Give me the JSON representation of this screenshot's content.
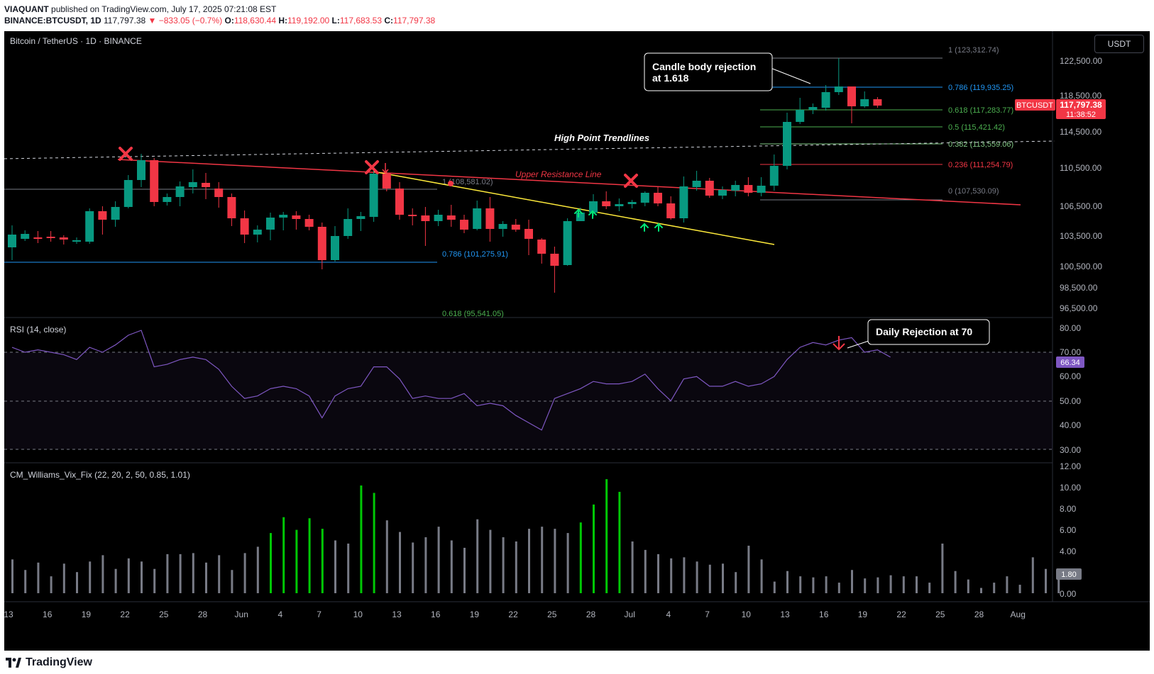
{
  "publish": {
    "author": "VIAQUANT",
    "published_text": "published on TradingView.com, July 17, 2025 07:21:08 EST",
    "symbol_line": "BINANCE:BTCUSDT, 1D",
    "last": "117,797.38",
    "change": "▼ −833.05 (−0.7%)",
    "o_label": "O:",
    "o": "118,630.44",
    "h_label": "H:",
    "h": "119,192.00",
    "l_label": "L:",
    "l": "117,683.53",
    "c_label": "C:",
    "c": "117,797.38"
  },
  "header": {
    "title": "Bitcoin / TetherUS · 1D · BINANCE",
    "currency_button": "USDT"
  },
  "price_scale": {
    "ticks": [
      "122,500.00",
      "118,500.00",
      "114,500.00",
      "110,500.00",
      "106,500.00",
      "103,500.00",
      "100,500.00",
      "98,500.00",
      "96,500.00"
    ],
    "ticker": "BTCUSDT",
    "last_price": "117,797.38",
    "countdown": "11:38:52"
  },
  "fib_upper": [
    {
      "label": "1 (123,312.74)",
      "color": "#787b86"
    },
    {
      "label": "0.786 (119,935.25)",
      "color": "#2196f3"
    },
    {
      "label": "0.618 (117,283.77)",
      "color": "#4caf50"
    },
    {
      "label": "0.5 (115,421.42)",
      "color": "#4caf50"
    },
    {
      "label": "0.382 (113,559.06)",
      "color": "#81c784"
    },
    {
      "label": "0.236 (111,254.79)",
      "color": "#f23645"
    },
    {
      "label": "0 (107,530.09)",
      "color": "#787b86"
    }
  ],
  "fib_lower": [
    {
      "label": "1 (108,581.02)",
      "color": "#787b86"
    },
    {
      "label": "0.786 (101,275.91)",
      "color": "#2196f3"
    },
    {
      "label": "0.618 (95,541.05)",
      "color": "#4caf50"
    }
  ],
  "annotations": {
    "candle_rejection": [
      "Candle body rejection",
      "at 1.618"
    ],
    "high_trendlines": "High Point Trendlines",
    "upper_resistance": "Upper Resistance Line",
    "daily_rejection": "Daily Rejection at 70"
  },
  "rsi": {
    "title": "RSI (14, close)",
    "ticks": [
      "80.00",
      "70.00",
      "60.00",
      "50.00",
      "40.00",
      "30.00"
    ],
    "value": "66.34",
    "values": [
      72,
      70,
      71,
      70,
      69,
      67,
      72,
      70,
      73,
      77,
      79,
      64,
      65,
      67,
      68,
      67,
      63,
      56,
      51,
      52,
      55,
      56,
      55,
      52,
      43,
      52,
      55,
      56,
      64,
      64,
      59,
      51,
      52,
      51,
      51,
      53,
      48,
      49,
      48,
      44,
      41,
      38,
      51,
      53,
      55,
      58,
      57,
      57,
      58,
      61,
      55,
      50,
      59,
      60,
      56,
      56,
      58,
      56,
      57,
      60,
      67,
      72,
      74,
      73,
      75,
      76,
      70,
      71,
      68
    ]
  },
  "cvf": {
    "title": "CM_Williams_Vix_Fix (22, 20, 2, 50, 0.85, 1.01)",
    "ticks": [
      "12.00",
      "10.00",
      "8.00",
      "6.00",
      "4.00",
      "2.00",
      "0.00"
    ],
    "value": "1.80",
    "values": [
      3.2,
      2.2,
      2.9,
      1.6,
      2.8,
      2.0,
      3.0,
      3.6,
      2.3,
      3.3,
      3.0,
      2.3,
      3.7,
      3.7,
      3.8,
      2.9,
      3.6,
      2.2,
      3.8,
      4.4,
      5.7,
      7.2,
      6.0,
      7.1,
      6.1,
      5.0,
      4.7,
      10.2,
      9.5,
      6.9,
      5.8,
      4.8,
      5.3,
      6.3,
      5.0,
      4.3,
      7.0,
      6.0,
      5.3,
      4.9,
      6.1,
      6.3,
      6.1,
      5.7,
      6.7,
      8.4,
      10.8,
      9.6,
      4.9,
      4.1,
      3.7,
      3.3,
      3.4,
      3.0,
      2.7,
      2.8,
      2.0,
      4.5,
      3.2,
      1.1,
      2.1,
      1.6,
      1.5,
      1.6,
      1.0,
      2.2,
      1.4,
      1.5,
      1.7,
      1.6,
      1.6,
      1.0,
      4.7,
      2.1,
      1.3,
      0.5,
      1.0,
      1.6,
      0.8,
      3.4,
      2.3,
      1.8
    ]
  },
  "time_axis": [
    "13",
    "16",
    "19",
    "22",
    "25",
    "28",
    "Jun",
    "4",
    "7",
    "10",
    "13",
    "16",
    "19",
    "22",
    "25",
    "28",
    "Jul",
    "4",
    "7",
    "10",
    "13",
    "16",
    "19",
    "22",
    "25",
    "28",
    "Aug"
  ],
  "brand": "TradingView",
  "colors": {
    "up": "#089981",
    "down": "#f23645",
    "rsi_line": "#7e57c2",
    "vix_green": "#00c805",
    "vix_gray": "#787b86"
  }
}
